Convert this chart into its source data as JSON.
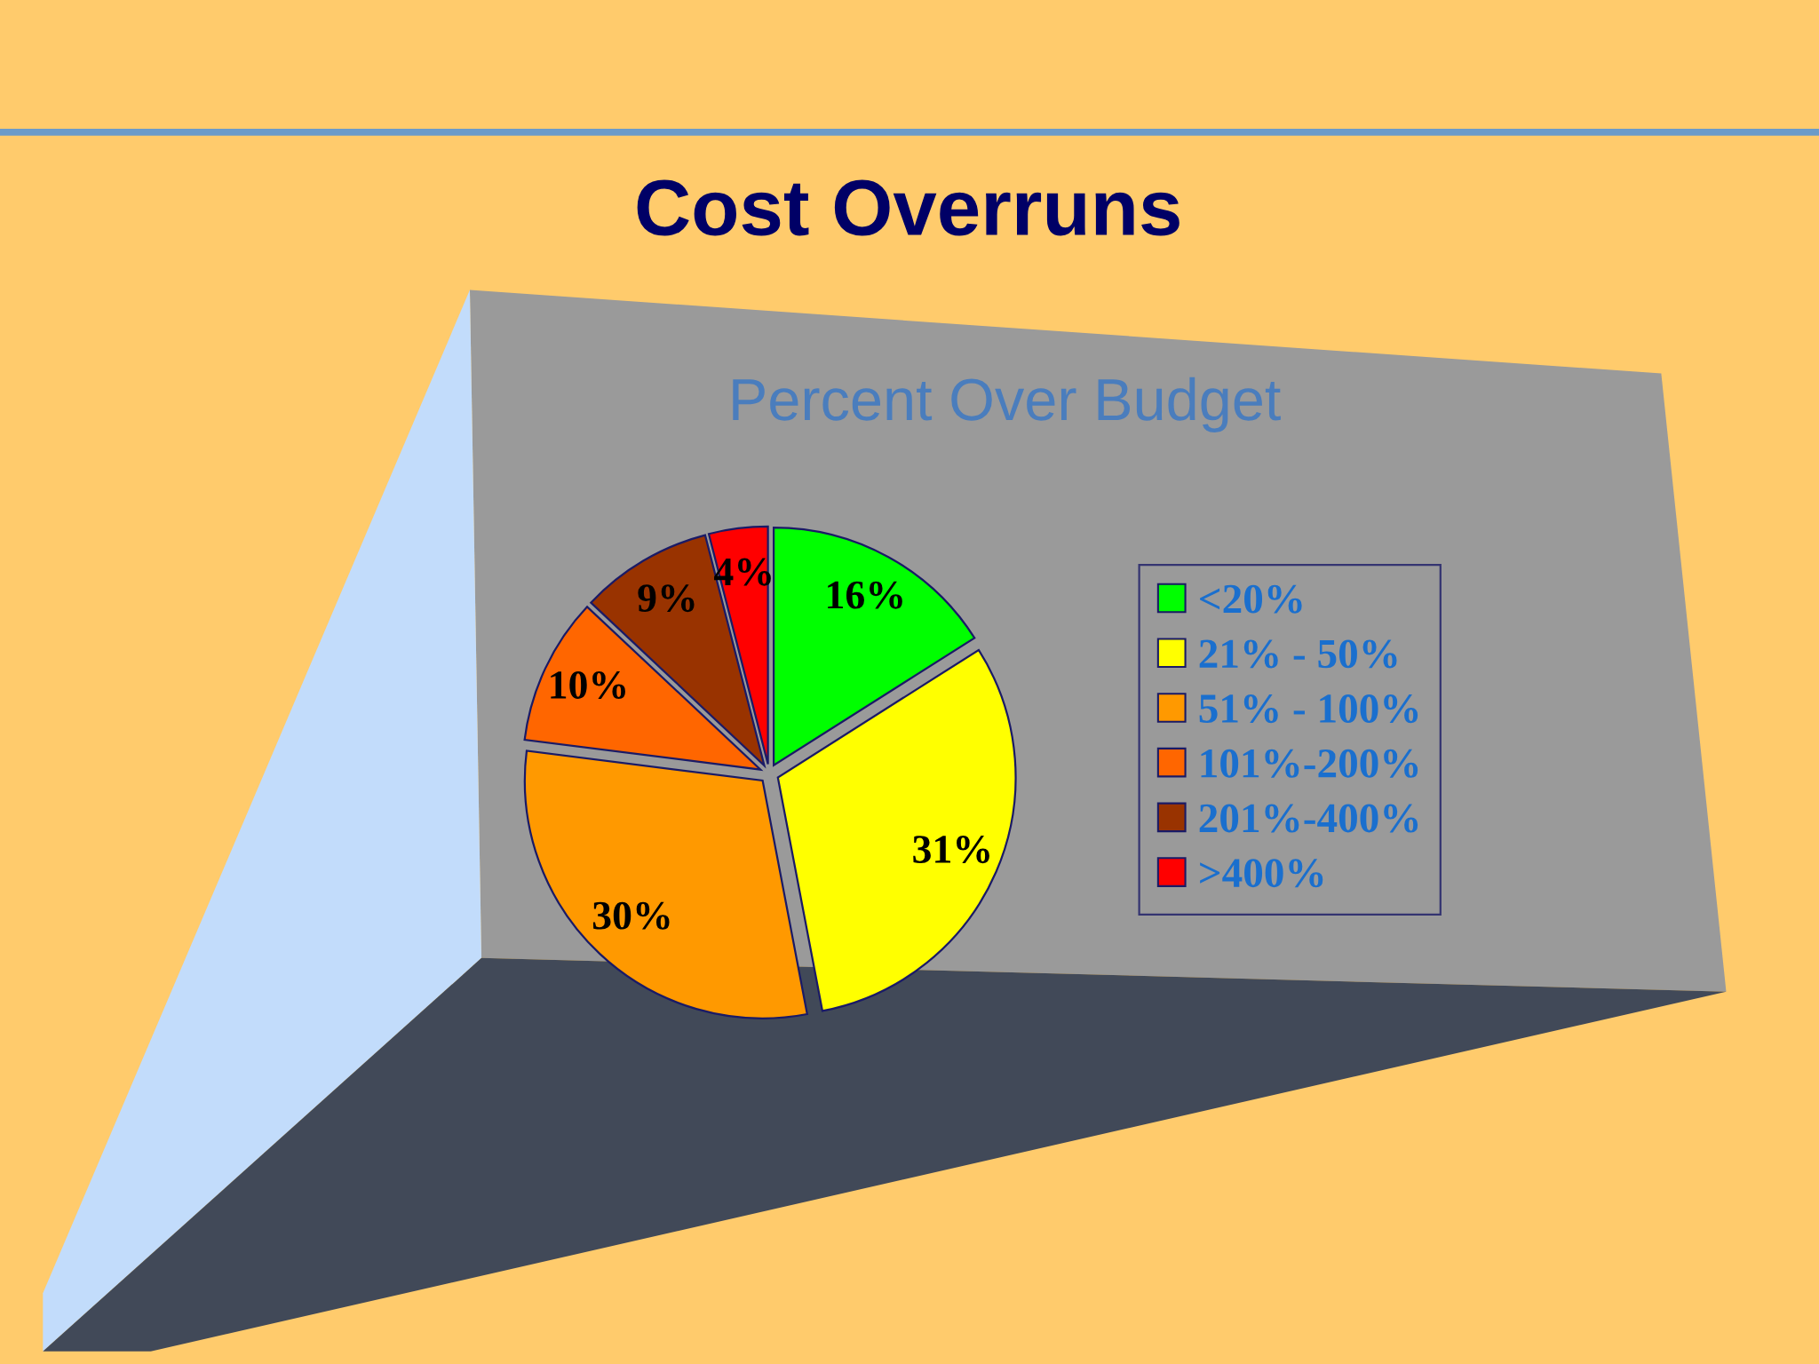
{
  "chart_data": {
    "type": "pie",
    "title": "Cost Overruns",
    "subtitle": "Percent Over Budget",
    "categories": [
      "<20%",
      "21% - 50%",
      "51% - 100%",
      "101%-200%",
      "201%-400%",
      ">400%"
    ],
    "values": [
      16,
      31,
      30,
      10,
      9,
      4
    ],
    "colors": [
      "#00ff00",
      "#ffff00",
      "#ff9900",
      "#ff6600",
      "#993300",
      "#ff0000"
    ],
    "value_labels": [
      "16%",
      "31%",
      "30%",
      "10%",
      "9%",
      "4%"
    ],
    "legend": "right"
  }
}
